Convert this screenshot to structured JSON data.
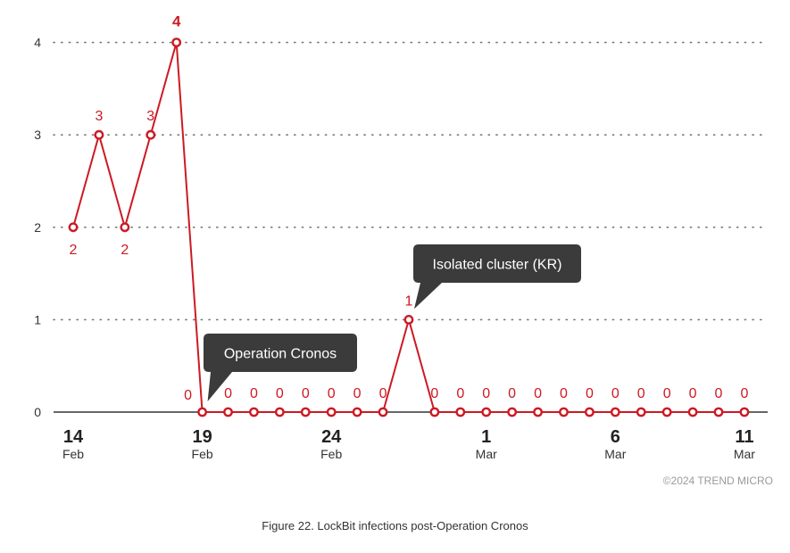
{
  "chart_data": {
    "type": "line",
    "x": [
      "14 Feb",
      "15 Feb",
      "16 Feb",
      "17 Feb",
      "18 Feb",
      "19 Feb",
      "20 Feb",
      "21 Feb",
      "22 Feb",
      "23 Feb",
      "24 Feb",
      "25 Feb",
      "26 Feb",
      "27 Feb",
      "28 Feb",
      "29 Feb",
      "1 Mar",
      "2 Mar",
      "3 Mar",
      "4 Mar",
      "5 Mar",
      "6 Mar",
      "7 Mar",
      "8 Mar",
      "9 Mar",
      "10 Mar",
      "11 Mar"
    ],
    "values": [
      2,
      3,
      2,
      3,
      4,
      0,
      0,
      0,
      0,
      0,
      0,
      0,
      0,
      1,
      0,
      0,
      0,
      0,
      0,
      0,
      0,
      0,
      0,
      0,
      0,
      0,
      0
    ],
    "ylim": [
      0,
      4
    ],
    "yticks": [
      "0",
      "1",
      "2",
      "3",
      "4"
    ],
    "xticks": [
      {
        "day": "14",
        "month": "Feb",
        "index": 0
      },
      {
        "day": "19",
        "month": "Feb",
        "index": 5
      },
      {
        "day": "24",
        "month": "Feb",
        "index": 10
      },
      {
        "day": "1",
        "month": "Mar",
        "index": 16
      },
      {
        "day": "6",
        "month": "Mar",
        "index": 21
      },
      {
        "day": "11",
        "month": "Mar",
        "index": 26
      }
    ],
    "grid": true,
    "line_color": "#cc1a24",
    "annotations": [
      {
        "text": "Operation Cronos",
        "index": 5
      },
      {
        "text": "Isolated cluster (KR)",
        "index": 13
      }
    ]
  },
  "copyright": "©2024 TREND MICRO",
  "caption": "Figure 22. LockBit infections post-Operation Cronos"
}
